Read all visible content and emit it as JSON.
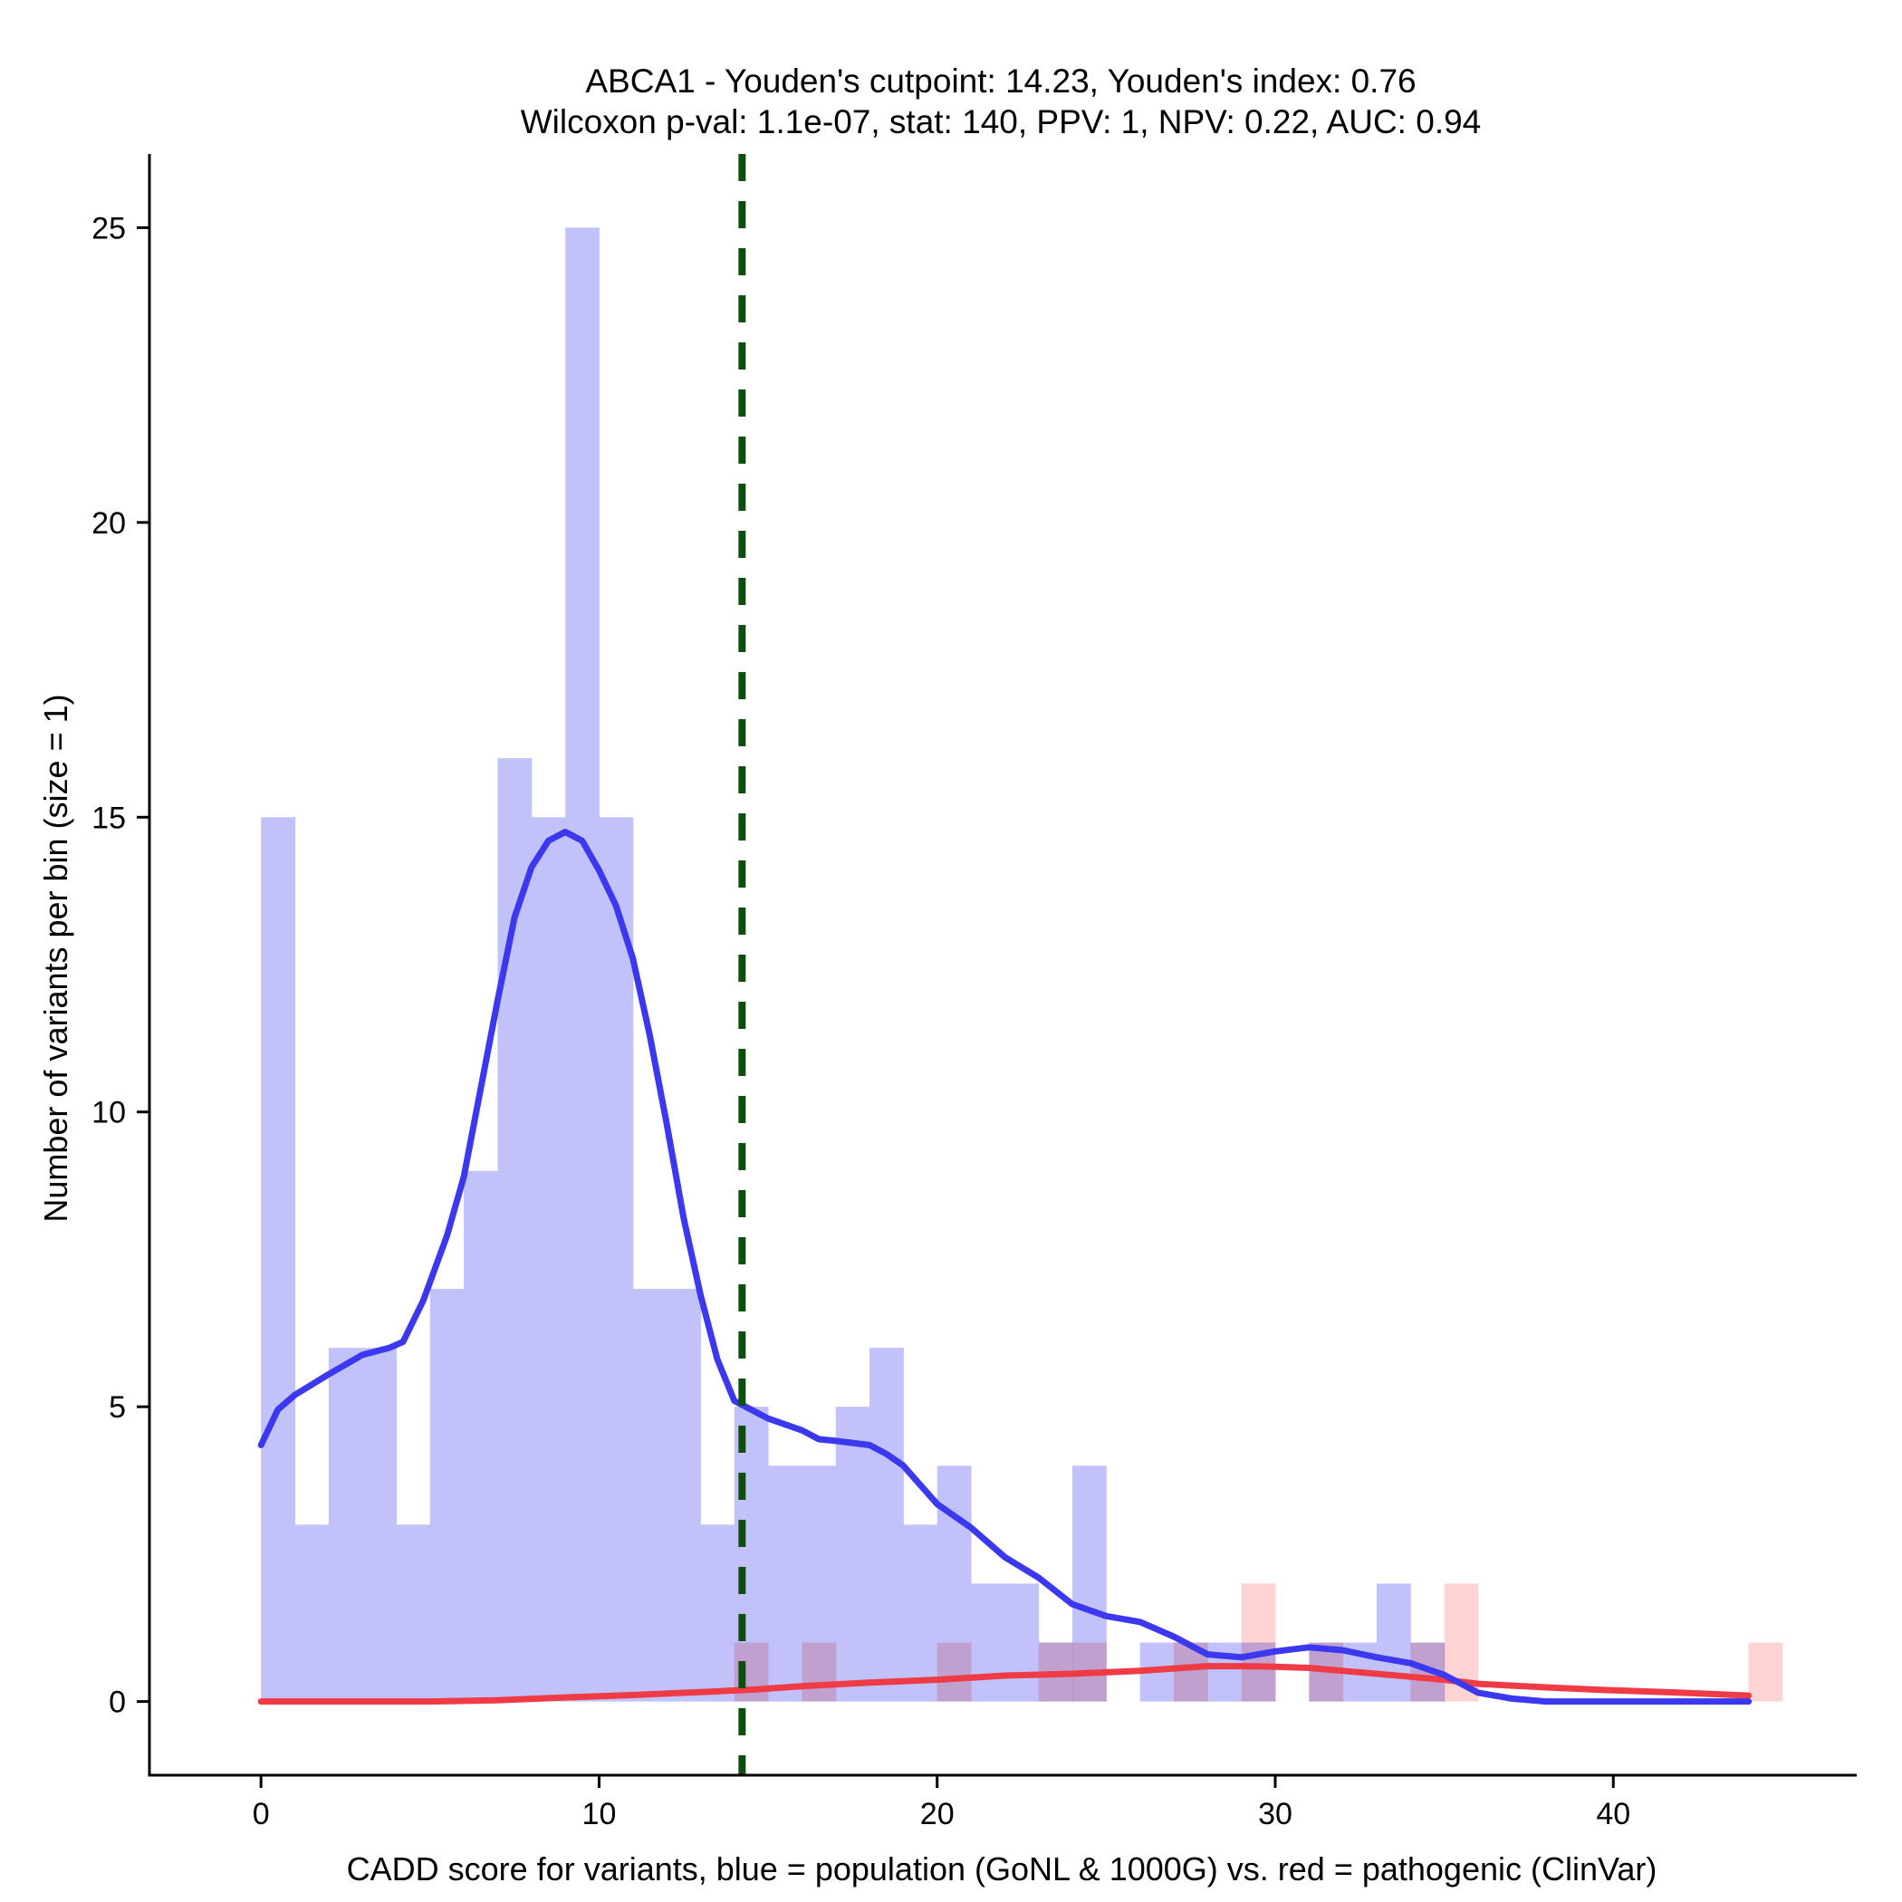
{
  "chart_data": {
    "type": "histogram",
    "title": "ABCA1 - Youden's cutpoint: 14.23, Youden's index: 0.76",
    "subtitle": "Wilcoxon p-val: 1.1e-07, stat: 140, PPV: 1, NPV: 0.22, AUC: 0.94",
    "xlabel": "CADD score for variants, blue = population (GoNL & 1000G) vs. red = pathogenic (ClinVar)",
    "ylabel": "Number of variants per bin (size = 1)",
    "xlim": [
      -3.3,
      47.2
    ],
    "ylim": [
      -1.25,
      26.25
    ],
    "x_ticks": [
      0,
      10,
      20,
      30,
      40
    ],
    "y_ticks": [
      0,
      5,
      10,
      15,
      20,
      25
    ],
    "bin_size": 1,
    "cutpoint": 14.23,
    "colors": {
      "population_bar": "#c0c0fb",
      "pathogenic_bar": "#fbb6b6",
      "population_line": "#3b38ef",
      "pathogenic_line": "#ef3b46",
      "cutpoint_line": "#0e4f0e"
    },
    "series": [
      {
        "name": "population (GoNL & 1000G)",
        "bins": [
          [
            0,
            15
          ],
          [
            1,
            3
          ],
          [
            2,
            6
          ],
          [
            3,
            6
          ],
          [
            4,
            3
          ],
          [
            5,
            7
          ],
          [
            6,
            9
          ],
          [
            7,
            16
          ],
          [
            8,
            15
          ],
          [
            9,
            25
          ],
          [
            10,
            15
          ],
          [
            11,
            7
          ],
          [
            12,
            7
          ],
          [
            13,
            3
          ],
          [
            14,
            5
          ],
          [
            15,
            4
          ],
          [
            16,
            4
          ],
          [
            17,
            5
          ],
          [
            18,
            6
          ],
          [
            19,
            3
          ],
          [
            20,
            4
          ],
          [
            21,
            2
          ],
          [
            22,
            2
          ],
          [
            23,
            1
          ],
          [
            24,
            4
          ],
          [
            26,
            1
          ],
          [
            27,
            1
          ],
          [
            28,
            1
          ],
          [
            29,
            1
          ],
          [
            31,
            1
          ],
          [
            32,
            1
          ],
          [
            33,
            2
          ],
          [
            34,
            1
          ]
        ],
        "density_curve": [
          [
            0,
            4.35
          ],
          [
            0.5,
            4.95
          ],
          [
            1,
            5.2
          ],
          [
            2,
            5.55
          ],
          [
            3,
            5.88
          ],
          [
            3.8,
            6.0
          ],
          [
            4.2,
            6.1
          ],
          [
            4.8,
            6.8
          ],
          [
            5.5,
            7.9
          ],
          [
            6,
            8.9
          ],
          [
            7,
            11.9
          ],
          [
            7.5,
            13.3
          ],
          [
            8,
            14.15
          ],
          [
            8.5,
            14.6
          ],
          [
            9,
            14.75
          ],
          [
            9.5,
            14.6
          ],
          [
            10,
            14.1
          ],
          [
            10.5,
            13.5
          ],
          [
            11,
            12.6
          ],
          [
            11.5,
            11.3
          ],
          [
            12,
            9.8
          ],
          [
            12.5,
            8.2
          ],
          [
            13,
            6.9
          ],
          [
            13.5,
            5.8
          ],
          [
            14,
            5.1
          ],
          [
            14.5,
            4.95
          ],
          [
            15,
            4.8
          ],
          [
            16,
            4.6
          ],
          [
            16.5,
            4.45
          ],
          [
            17,
            4.42
          ],
          [
            18,
            4.35
          ],
          [
            18.5,
            4.2
          ],
          [
            19,
            4.0
          ],
          [
            20,
            3.35
          ],
          [
            21,
            2.95
          ],
          [
            22,
            2.45
          ],
          [
            23,
            2.1
          ],
          [
            24,
            1.65
          ],
          [
            25,
            1.45
          ],
          [
            26,
            1.35
          ],
          [
            27,
            1.1
          ],
          [
            28,
            0.8
          ],
          [
            29,
            0.75
          ],
          [
            30,
            0.85
          ],
          [
            31,
            0.92
          ],
          [
            32,
            0.87
          ],
          [
            33,
            0.75
          ],
          [
            34,
            0.65
          ],
          [
            35,
            0.45
          ],
          [
            36,
            0.15
          ],
          [
            37,
            0.05
          ],
          [
            38,
            0.0
          ],
          [
            44,
            0.0
          ]
        ]
      },
      {
        "name": "pathogenic (ClinVar)",
        "bins": [
          [
            14,
            1
          ],
          [
            16,
            1
          ],
          [
            20,
            1
          ],
          [
            23,
            1
          ],
          [
            24,
            1
          ],
          [
            27,
            1
          ],
          [
            29,
            2
          ],
          [
            31,
            1
          ],
          [
            34,
            1
          ],
          [
            35,
            2
          ],
          [
            44,
            1
          ]
        ],
        "density_curve": [
          [
            0,
            0.0
          ],
          [
            5,
            0.0
          ],
          [
            7,
            0.02
          ],
          [
            9,
            0.07
          ],
          [
            11,
            0.11
          ],
          [
            13,
            0.16
          ],
          [
            14.5,
            0.2
          ],
          [
            16,
            0.26
          ],
          [
            18,
            0.32
          ],
          [
            20,
            0.37
          ],
          [
            22,
            0.44
          ],
          [
            24,
            0.47
          ],
          [
            26,
            0.52
          ],
          [
            28,
            0.6
          ],
          [
            29,
            0.6
          ],
          [
            30,
            0.59
          ],
          [
            31,
            0.57
          ],
          [
            32,
            0.52
          ],
          [
            33,
            0.47
          ],
          [
            34,
            0.42
          ],
          [
            35,
            0.37
          ],
          [
            36,
            0.3
          ],
          [
            38,
            0.24
          ],
          [
            40,
            0.19
          ],
          [
            42,
            0.15
          ],
          [
            44,
            0.1
          ]
        ]
      }
    ]
  }
}
